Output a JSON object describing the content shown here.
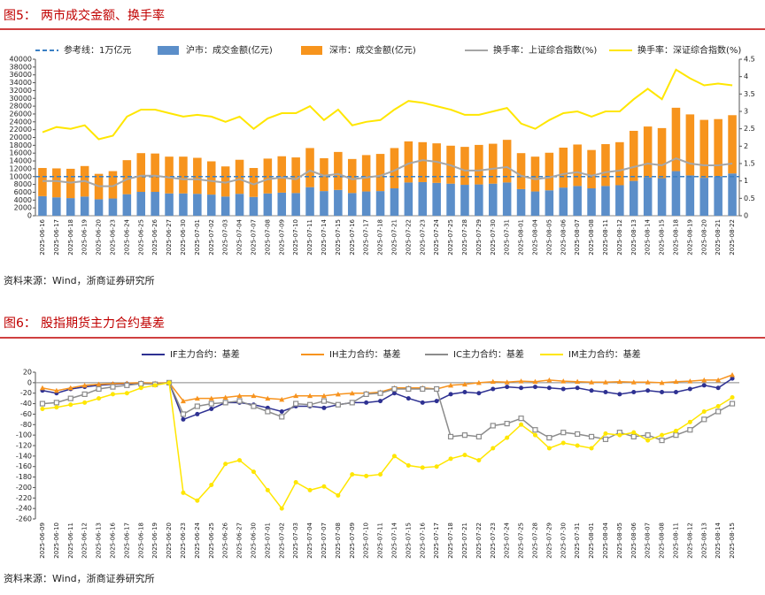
{
  "chart_data": [
    {
      "type": "bar",
      "figure_label": "图5：",
      "title": "两市成交金额、换手率",
      "source": "资料来源：Wind，浙商证券研究所",
      "categories": [
        "2025-06-16",
        "2025-06-17",
        "2025-06-18",
        "2025-06-19",
        "2025-06-20",
        "2025-06-23",
        "2025-06-24",
        "2025-06-25",
        "2025-06-26",
        "2025-06-27",
        "2025-06-30",
        "2025-07-01",
        "2025-07-02",
        "2025-07-03",
        "2025-07-04",
        "2025-07-07",
        "2025-07-08",
        "2025-07-09",
        "2025-07-10",
        "2025-07-11",
        "2025-07-14",
        "2025-07-15",
        "2025-07-16",
        "2025-07-17",
        "2025-07-18",
        "2025-07-21",
        "2025-07-22",
        "2025-07-23",
        "2025-07-24",
        "2025-07-25",
        "2025-07-28",
        "2025-07-29",
        "2025-07-30",
        "2025-07-31",
        "2025-08-01",
        "2025-08-04",
        "2025-08-05",
        "2025-08-06",
        "2025-08-07",
        "2025-08-08",
        "2025-08-11",
        "2025-08-12",
        "2025-08-13",
        "2025-08-14",
        "2025-08-15",
        "2025-08-18",
        "2025-08-19",
        "2025-08-20",
        "2025-08-21",
        "2025-08-22"
      ],
      "reference_line": {
        "name": "参考线：1万亿元",
        "value": 10000,
        "color": "#3a7fc4"
      },
      "series": [
        {
          "name": "沪市：成交金额(亿元)",
          "type": "bar",
          "color": "#5b8ec9",
          "values": [
            5000,
            4700,
            4500,
            4900,
            4200,
            4400,
            5500,
            6100,
            6100,
            5700,
            5700,
            5600,
            5400,
            4900,
            5600,
            4800,
            5700,
            5900,
            5800,
            7300,
            6300,
            6600,
            5800,
            6200,
            6300,
            7000,
            8500,
            8600,
            8400,
            8200,
            7900,
            8000,
            8200,
            8500,
            6800,
            6200,
            6500,
            7200,
            7600,
            7000,
            7600,
            7800,
            8900,
            9800,
            9600,
            11400,
            10300,
            9700,
            10100,
            10800
          ]
        },
        {
          "name": "深市：成交金额(亿元)",
          "type": "bar",
          "color": "#f7941d",
          "values": [
            7200,
            7400,
            7500,
            7800,
            6500,
            7000,
            8700,
            9900,
            9800,
            9400,
            9400,
            9200,
            8500,
            7700,
            8700,
            7400,
            8900,
            9300,
            9100,
            10000,
            8400,
            9700,
            8700,
            9300,
            9500,
            10300,
            10500,
            10200,
            10100,
            9700,
            9700,
            10100,
            10200,
            10900,
            9200,
            8900,
            9600,
            10200,
            10600,
            9800,
            10700,
            11000,
            12800,
            13000,
            12800,
            16200,
            15600,
            14800,
            14600,
            14900
          ]
        },
        {
          "name": "换手率：上证综合指数(%)",
          "type": "line",
          "axis": "y2",
          "color": "#a6a6a6",
          "values": [
            1.0,
            1.0,
            0.95,
            1.0,
            0.85,
            0.85,
            1.05,
            1.15,
            1.15,
            1.1,
            1.05,
            1.05,
            1.0,
            0.95,
            1.05,
            0.9,
            1.05,
            1.1,
            1.05,
            1.3,
            1.15,
            1.2,
            1.05,
            1.1,
            1.15,
            1.3,
            1.5,
            1.6,
            1.55,
            1.45,
            1.3,
            1.3,
            1.35,
            1.4,
            1.15,
            1.05,
            1.1,
            1.2,
            1.25,
            1.15,
            1.25,
            1.3,
            1.4,
            1.5,
            1.45,
            1.65,
            1.5,
            1.45,
            1.45,
            1.5
          ]
        },
        {
          "name": "换手率：深证综合指数(%)",
          "type": "line",
          "axis": "y2",
          "color": "#ffe600",
          "values": [
            2.4,
            2.55,
            2.5,
            2.6,
            2.2,
            2.3,
            2.85,
            3.05,
            3.05,
            2.95,
            2.85,
            2.9,
            2.85,
            2.7,
            2.85,
            2.5,
            2.8,
            2.95,
            2.95,
            3.15,
            2.75,
            3.05,
            2.6,
            2.7,
            2.75,
            3.05,
            3.3,
            3.25,
            3.15,
            3.05,
            2.9,
            2.9,
            3.0,
            3.1,
            2.65,
            2.5,
            2.75,
            2.95,
            3.0,
            2.85,
            3.0,
            3.0,
            3.35,
            3.65,
            3.35,
            4.2,
            3.95,
            3.75,
            3.8,
            3.75
          ]
        }
      ],
      "ylim": [
        0,
        40000
      ],
      "yticks": [
        0,
        2000,
        4000,
        6000,
        8000,
        10000,
        12000,
        14000,
        16000,
        18000,
        20000,
        22000,
        24000,
        26000,
        28000,
        30000,
        32000,
        34000,
        36000,
        38000,
        40000
      ],
      "y2lim": [
        0,
        4.5
      ],
      "y2ticks": [
        0,
        0.5,
        1,
        1.5,
        2,
        2.5,
        3,
        3.5,
        4,
        4.5
      ],
      "grid": false
    },
    {
      "type": "line",
      "figure_label": "图6：",
      "title": "股指期货主力合约基差",
      "source": "资料来源：Wind，浙商证券研究所",
      "categories": [
        "2025-06-09",
        "2025-06-10",
        "2025-06-11",
        "2025-06-12",
        "2025-06-13",
        "2025-06-16",
        "2025-06-17",
        "2025-06-18",
        "2025-06-19",
        "2025-06-20",
        "2025-06-23",
        "2025-06-24",
        "2025-06-25",
        "2025-06-26",
        "2025-06-27",
        "2025-06-30",
        "2025-07-01",
        "2025-07-02",
        "2025-07-03",
        "2025-07-04",
        "2025-07-07",
        "2025-07-08",
        "2025-07-09",
        "2025-07-10",
        "2025-07-11",
        "2025-07-14",
        "2025-07-15",
        "2025-07-16",
        "2025-07-17",
        "2025-07-18",
        "2025-07-21",
        "2025-07-22",
        "2025-07-23",
        "2025-07-24",
        "2025-07-25",
        "2025-07-28",
        "2025-07-29",
        "2025-07-30",
        "2025-07-31",
        "2025-08-01",
        "2025-08-04",
        "2025-08-05",
        "2025-08-06",
        "2025-08-07",
        "2025-08-08",
        "2025-08-11",
        "2025-08-12",
        "2025-08-13",
        "2025-08-14",
        "2025-08-15"
      ],
      "series": [
        {
          "name": "IF主力合约：基差",
          "color": "#2e3192",
          "marker": "circle",
          "values": [
            -15,
            -20,
            -12,
            -8,
            -5,
            -3,
            -2,
            -1,
            -2,
            0,
            -70,
            -60,
            -50,
            -38,
            -38,
            -42,
            -48,
            -55,
            -45,
            -45,
            -48,
            -42,
            -38,
            -38,
            -35,
            -20,
            -30,
            -38,
            -35,
            -22,
            -18,
            -20,
            -12,
            -8,
            -10,
            -8,
            -10,
            -12,
            -10,
            -15,
            -18,
            -22,
            -18,
            -15,
            -18,
            -18,
            -12,
            -5,
            -10,
            8
          ]
        },
        {
          "name": "IH主力合约：基差",
          "color": "#f7931e",
          "marker": "triangle",
          "values": [
            -10,
            -15,
            -10,
            -5,
            -3,
            -2,
            -1,
            0,
            -1,
            0,
            -35,
            -30,
            -30,
            -28,
            -25,
            -25,
            -30,
            -32,
            -25,
            -25,
            -25,
            -22,
            -20,
            -20,
            -18,
            -10,
            -10,
            -10,
            -12,
            -5,
            -3,
            0,
            2,
            1,
            3,
            2,
            5,
            3,
            2,
            1,
            1,
            2,
            1,
            1,
            0,
            2,
            3,
            5,
            5,
            15
          ]
        },
        {
          "name": "IC主力合约：基差",
          "color": "#8c8c8c",
          "marker": "square",
          "values": [
            -40,
            -38,
            -30,
            -22,
            -12,
            -8,
            -5,
            -2,
            -3,
            0,
            -60,
            -45,
            -40,
            -38,
            -35,
            -45,
            -55,
            -65,
            -40,
            -42,
            -35,
            -42,
            -38,
            -22,
            -20,
            -12,
            -12,
            -12,
            -12,
            -103,
            -100,
            -103,
            -82,
            -78,
            -68,
            -90,
            -105,
            -95,
            -98,
            -103,
            -108,
            -95,
            -103,
            -100,
            -110,
            -100,
            -90,
            -70,
            -55,
            -40
          ]
        },
        {
          "name": "IM主力合约：基差",
          "color": "#ffe600",
          "marker": "circle",
          "values": [
            -50,
            -47,
            -42,
            -38,
            -30,
            -22,
            -20,
            -10,
            -5,
            0,
            -210,
            -225,
            -195,
            -155,
            -148,
            -170,
            -205,
            -240,
            -190,
            -205,
            -198,
            -215,
            -175,
            -178,
            -175,
            -140,
            -158,
            -162,
            -160,
            -145,
            -138,
            -148,
            -125,
            -105,
            -80,
            -100,
            -125,
            -115,
            -120,
            -125,
            -97,
            -100,
            -95,
            -110,
            -100,
            -92,
            -75,
            -55,
            -45,
            -28
          ]
        }
      ],
      "ylim": [
        -260,
        20
      ],
      "yticks": [
        -260,
        -240,
        -220,
        -200,
        -180,
        -160,
        -140,
        -120,
        -100,
        -80,
        -60,
        -40,
        -20,
        0,
        20
      ],
      "grid": false
    }
  ]
}
